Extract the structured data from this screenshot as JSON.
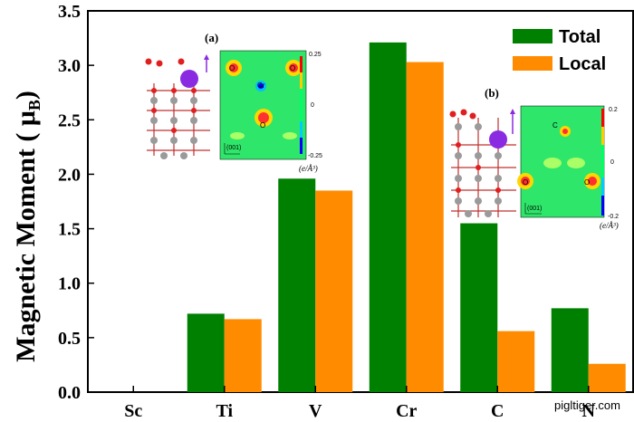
{
  "chart_data": {
    "type": "bar",
    "title": "",
    "xlabel": "",
    "ylabel": "Magnetic Moment ( μB)",
    "ylabel_main": "Magnetic Moment ( μ",
    "ylabel_sub": "B",
    "ylabel_close": ")",
    "ylim": [
      0.0,
      3.5
    ],
    "yticks": [
      "0.0",
      "0.5",
      "1.0",
      "1.5",
      "2.0",
      "2.5",
      "3.0",
      "3.5"
    ],
    "categories": [
      "Sc",
      "Ti",
      "V",
      "Cr",
      "C",
      "N"
    ],
    "series": [
      {
        "name": "Total",
        "color": "#008000",
        "values": [
          0.0,
          0.72,
          1.96,
          3.21,
          1.55,
          0.77
        ]
      },
      {
        "name": "Local",
        "color": "#ff8c00",
        "values": [
          0.0,
          0.67,
          1.85,
          3.03,
          0.56,
          0.26
        ]
      }
    ],
    "legend_position": "top-right",
    "grid": false
  },
  "insets": {
    "a": {
      "label": "(a)",
      "cmap_max": "0.25",
      "cmap_mid": "0",
      "cmap_min": "-0.25",
      "unit": "(e/Å³)",
      "atom_labels": [
        "O",
        "O",
        "Cr",
        "O"
      ],
      "direction": "(001)"
    },
    "b": {
      "label": "(b)",
      "cmap_max": "0.2",
      "cmap_mid": "0",
      "cmap_min": "-0.2",
      "unit": "(e/Å³)",
      "atom_labels": [
        "C",
        "O",
        "O"
      ],
      "direction": "(001)"
    }
  },
  "watermark": "pigltiger.com"
}
